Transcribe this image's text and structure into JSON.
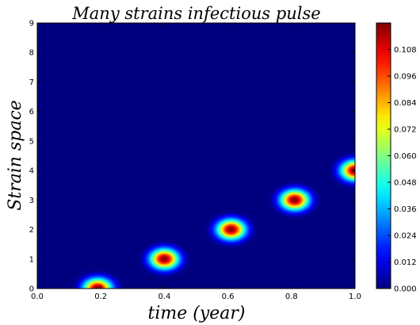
{
  "chart_data": {
    "type": "heatmap",
    "title": "Many strains infectious pulse",
    "xlabel": "time (year)",
    "ylabel": "Strain space",
    "xlim": [
      0.0,
      1.0
    ],
    "ylim": [
      0,
      9
    ],
    "x_ticks": [
      "0.0",
      "0.2",
      "0.4",
      "0.6",
      "0.8",
      "1.0"
    ],
    "y_ticks": [
      "0",
      "1",
      "2",
      "3",
      "4",
      "5",
      "6",
      "7",
      "8",
      "9"
    ],
    "colormap": "jet",
    "colorbar": {
      "min": 0.0,
      "max": 0.12,
      "ticks": [
        "0.000",
        "0.012",
        "0.024",
        "0.036",
        "0.048",
        "0.060",
        "0.072",
        "0.084",
        "0.096",
        "0.108"
      ]
    },
    "pulses": [
      {
        "time": 0.19,
        "strain": 0,
        "peak": 0.12
      },
      {
        "time": 0.4,
        "strain": 1,
        "peak": 0.12
      },
      {
        "time": 0.61,
        "strain": 2,
        "peak": 0.12
      },
      {
        "time": 0.81,
        "strain": 3,
        "peak": 0.12
      },
      {
        "time": 1.0,
        "strain": 4,
        "peak": 0.12
      }
    ],
    "pulse_width_time": 0.03,
    "pulse_width_strain": 0.23,
    "grid": false
  }
}
